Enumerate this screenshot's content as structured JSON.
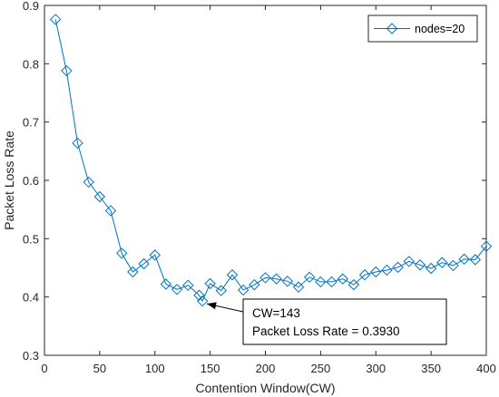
{
  "chart_data": {
    "type": "line",
    "xlabel": "Contention Window(CW)",
    "ylabel": "Packet Loss Rate",
    "xlim": [
      0,
      400
    ],
    "ylim": [
      0.3,
      0.9
    ],
    "xticks": [
      0,
      50,
      100,
      150,
      200,
      250,
      300,
      350,
      400
    ],
    "yticks": [
      0.3,
      0.4,
      0.5,
      0.6,
      0.7,
      0.8,
      0.9
    ],
    "grid": false,
    "legend_position": "top-right",
    "marker": "diamond",
    "series_color": "#0072BD",
    "series": [
      {
        "name": "nodes=20",
        "x": [
          10,
          20,
          30,
          40,
          50,
          60,
          70,
          80,
          90,
          100,
          110,
          120,
          130,
          140,
          143,
          150,
          160,
          170,
          180,
          190,
          200,
          210,
          220,
          230,
          240,
          250,
          260,
          270,
          280,
          290,
          300,
          310,
          320,
          330,
          340,
          350,
          360,
          370,
          380,
          390,
          400
        ],
        "y": [
          0.876,
          0.788,
          0.664,
          0.597,
          0.572,
          0.548,
          0.475,
          0.443,
          0.457,
          0.472,
          0.422,
          0.413,
          0.42,
          0.403,
          0.393,
          0.423,
          0.411,
          0.438,
          0.412,
          0.421,
          0.433,
          0.431,
          0.427,
          0.417,
          0.434,
          0.426,
          0.426,
          0.431,
          0.421,
          0.438,
          0.443,
          0.446,
          0.451,
          0.461,
          0.455,
          0.449,
          0.459,
          0.454,
          0.465,
          0.464,
          0.487
        ]
      }
    ],
    "annotation": {
      "lines": [
        "CW=143",
        "Packet Loss Rate = 0.3930"
      ],
      "point": {
        "x": 143,
        "y": 0.393
      }
    }
  }
}
